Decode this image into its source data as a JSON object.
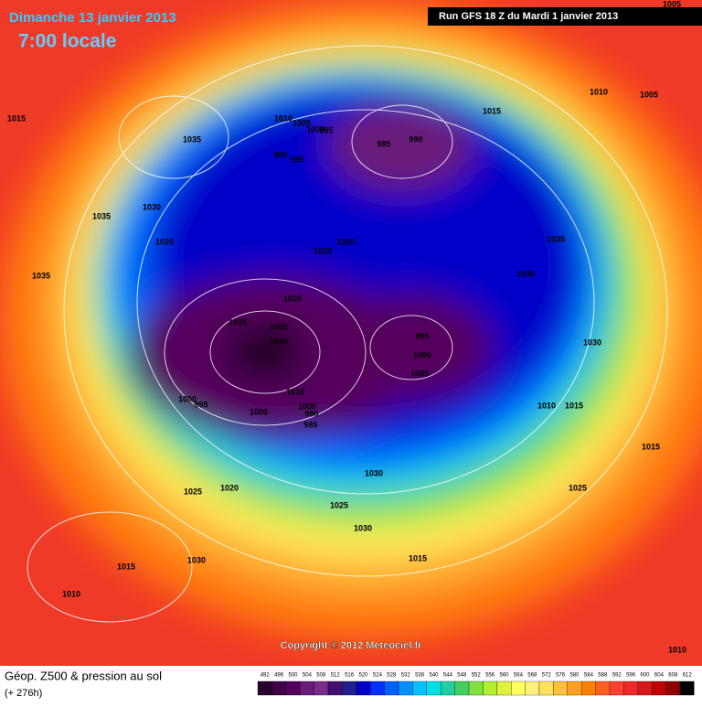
{
  "header": {
    "date": "Dimanche 13 janvier 2013",
    "time": "7:00 locale",
    "run": "Run GFS 18 Z du Mardi 1 janvier 2013"
  },
  "map": {
    "copyright": "Copyright © 2012 Meteociel.fr",
    "isobar_labels": [
      1005,
      1015,
      1035,
      1010,
      1005,
      1000,
      995,
      985,
      990,
      990,
      990,
      1015,
      1010,
      1005,
      1035,
      1030,
      1020,
      1025,
      1020,
      1035,
      1030,
      1035,
      1020,
      1015,
      1005,
      1000,
      995,
      1000,
      1005,
      1030,
      1010,
      1000,
      995,
      1000,
      990,
      985,
      1005,
      1010,
      1015,
      1015,
      1030,
      1025,
      1020,
      1025,
      1025,
      1030,
      1030,
      1015,
      1015,
      1010,
      1010
    ]
  },
  "footer": {
    "title": "Géop. Z500 & pression au sol",
    "lead": "(+ 276h)"
  },
  "scale": {
    "values": [
      492,
      496,
      500,
      504,
      508,
      512,
      516,
      520,
      524,
      528,
      532,
      536,
      540,
      544,
      548,
      552,
      556,
      560,
      564,
      568,
      572,
      576,
      580,
      584,
      588,
      592,
      596,
      600,
      604,
      608,
      612
    ],
    "colors": [
      "#2a0030",
      "#3f0046",
      "#55005d",
      "#6a1a78",
      "#7a2c8a",
      "#40106a",
      "#202090",
      "#0000c8",
      "#0030ff",
      "#0060ff",
      "#0090ff",
      "#00c0ff",
      "#00e0e0",
      "#20d0a0",
      "#40d060",
      "#80e040",
      "#b0f030",
      "#e0f040",
      "#ffff60",
      "#fff080",
      "#ffe060",
      "#ffc040",
      "#ffa020",
      "#ff8000",
      "#ff6020",
      "#ff4030",
      "#f02828",
      "#d81818",
      "#c00000",
      "#900000",
      "#000000"
    ]
  }
}
